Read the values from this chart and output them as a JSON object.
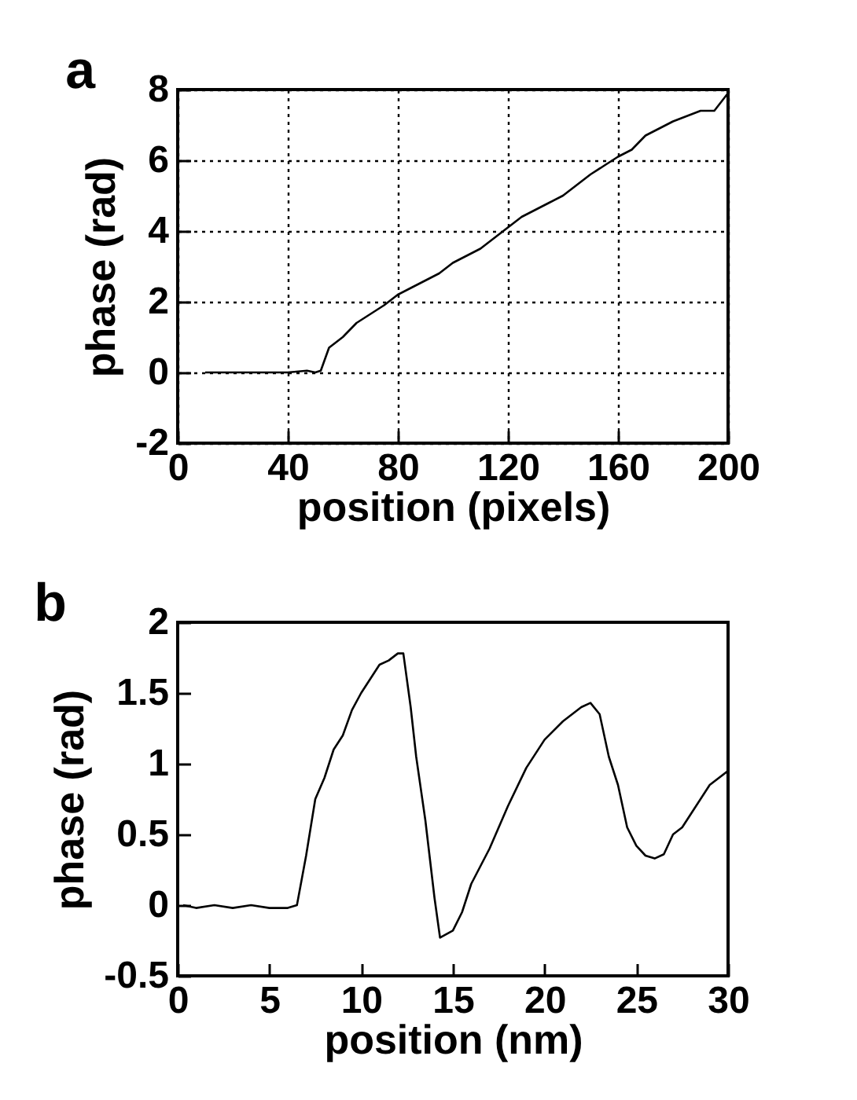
{
  "chart_data": [
    {
      "type": "line",
      "title": "a",
      "xlabel": "position (pixels)",
      "ylabel": "phase (rad)",
      "color": "#000000",
      "grid": true,
      "x": [
        10,
        20,
        30,
        40,
        47,
        50,
        52,
        55,
        60,
        65,
        70,
        75,
        80,
        85,
        90,
        95,
        100,
        105,
        110,
        115,
        120,
        125,
        130,
        135,
        140,
        145,
        150,
        155,
        160,
        165,
        170,
        175,
        180,
        185,
        190,
        195,
        200
      ],
      "values": [
        0,
        0,
        0,
        0,
        0.05,
        0,
        0.05,
        0.7,
        1.0,
        1.4,
        1.65,
        1.9,
        2.2,
        2.4,
        2.6,
        2.8,
        3.1,
        3.3,
        3.5,
        3.8,
        4.1,
        4.4,
        4.6,
        4.8,
        5.0,
        5.3,
        5.6,
        5.85,
        6.1,
        6.3,
        6.7,
        6.9,
        7.1,
        7.25,
        7.4,
        7.4,
        7.9
      ],
      "xlim": [
        0,
        200
      ],
      "xticks": [
        0,
        40,
        80,
        120,
        160,
        200
      ],
      "ylim": [
        -2,
        8
      ],
      "yticks": [
        -2,
        0,
        2,
        4,
        6,
        8
      ]
    },
    {
      "type": "line",
      "title": "b",
      "xlabel": "position (nm)",
      "ylabel": "phase (rad)",
      "color": "#000000",
      "x": [
        0.3,
        1,
        2,
        3,
        4,
        5,
        6,
        6.5,
        7,
        7.5,
        8,
        8.5,
        9,
        9.5,
        10,
        10.5,
        11,
        11.5,
        12,
        12.3,
        12.7,
        13,
        13.5,
        14,
        14.3,
        15,
        15.5,
        16,
        17,
        18,
        19,
        20,
        21,
        22,
        22.5,
        23,
        23.5,
        24,
        24.5,
        25,
        25.5,
        26,
        26.5,
        27,
        27.5,
        28,
        29,
        30
      ],
      "values": [
        0,
        -0.02,
        0,
        -0.02,
        0,
        -0.02,
        -0.02,
        0.0,
        0.35,
        0.75,
        0.9,
        1.1,
        1.2,
        1.38,
        1.5,
        1.6,
        1.7,
        1.73,
        1.78,
        1.78,
        1.4,
        1.05,
        0.6,
        0.05,
        -0.23,
        -0.18,
        -0.05,
        0.15,
        0.4,
        0.7,
        0.97,
        1.17,
        1.3,
        1.4,
        1.43,
        1.35,
        1.05,
        0.85,
        0.55,
        0.42,
        0.35,
        0.33,
        0.36,
        0.5,
        0.55,
        0.65,
        0.85,
        0.95
      ],
      "xlim": [
        0,
        30
      ],
      "xticks": [
        0,
        5,
        10,
        15,
        20,
        25,
        30
      ],
      "ylim": [
        -0.5,
        2
      ],
      "yticks": [
        -0.5,
        0,
        0.5,
        1,
        1.5,
        2
      ]
    }
  ]
}
